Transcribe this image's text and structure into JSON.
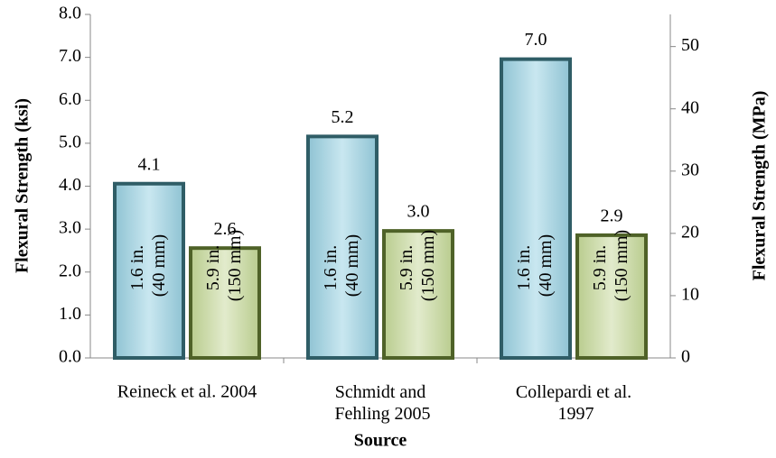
{
  "chart_data": {
    "type": "bar",
    "y_label": "Flexural Strength (ksi)",
    "y2_label": "Flexural Strength (MPa)",
    "x_label": "Source",
    "categories": [
      "Reineck et al. 2004",
      "Schmidt and\nFehling 2005",
      "Collepardi et al.\n1997"
    ],
    "series": [
      {
        "name": "1.6 in.\n(40 mm)",
        "color": "#b7dde8",
        "edge": "#2f5d66",
        "values": [
          4.1,
          5.2,
          7.0
        ],
        "value_labels": [
          "4.1",
          "5.2",
          "7.0"
        ]
      },
      {
        "name": "5.9 in.\n(150 mm)",
        "color": "#d7e4bd",
        "edge": "#4f6228",
        "values": [
          2.6,
          3.0,
          2.9
        ],
        "value_labels": [
          "2.6",
          "3.0",
          "2.9"
        ]
      }
    ],
    "ylim": [
      0,
      8
    ],
    "yticks": [
      {
        "value": 0,
        "label": "0.0"
      },
      {
        "value": 1,
        "label": "1.0"
      },
      {
        "value": 2,
        "label": "2.0"
      },
      {
        "value": 3,
        "label": "3.0"
      },
      {
        "value": 4,
        "label": "4.0"
      },
      {
        "value": 5,
        "label": "5.0"
      },
      {
        "value": 6,
        "label": "6.0"
      },
      {
        "value": 7,
        "label": "7.0"
      },
      {
        "value": 8,
        "label": "8.0"
      }
    ],
    "y2lim": [
      0,
      55.16
    ],
    "y2ticks": [
      0,
      10,
      20,
      30,
      40,
      50
    ],
    "grid": false
  }
}
